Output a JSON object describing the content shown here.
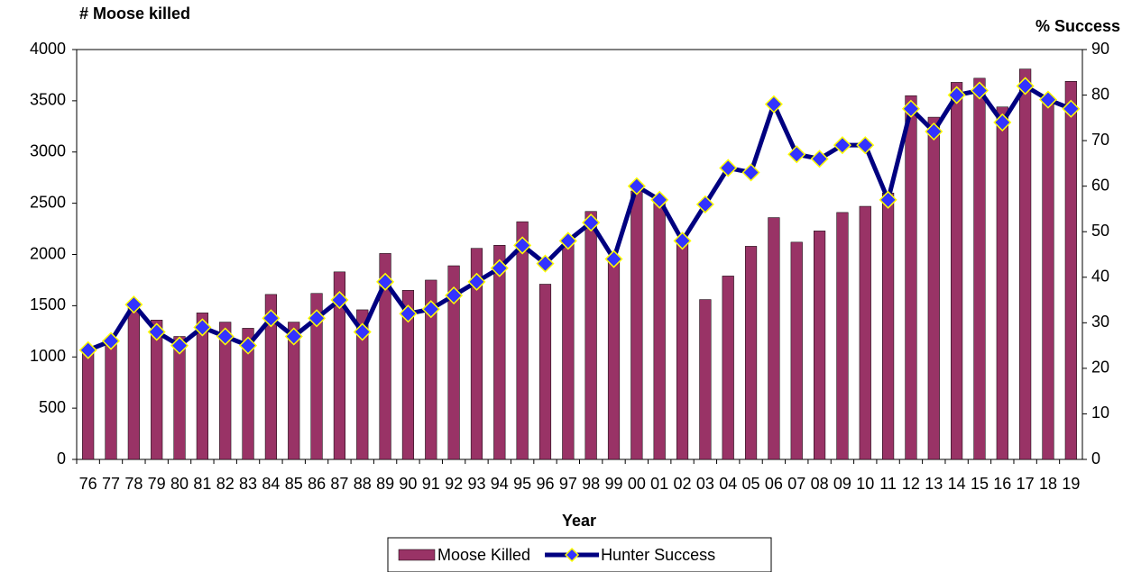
{
  "chart_data": {
    "type": "bar",
    "y_label": "# Moose killed",
    "y2_label": "%  Success",
    "x_label": "Year",
    "categories": [
      "76",
      "77",
      "78",
      "79",
      "80",
      "81",
      "82",
      "83",
      "84",
      "85",
      "86",
      "87",
      "88",
      "89",
      "90",
      "91",
      "92",
      "93",
      "94",
      "95",
      "96",
      "97",
      "98",
      "99",
      "00",
      "01",
      "02",
      "03",
      "04",
      "05",
      "06",
      "07",
      "08",
      "09",
      "10",
      "11",
      "12",
      "13",
      "14",
      "15",
      "16",
      "17",
      "18",
      "19"
    ],
    "series": [
      {
        "name": "Moose Killed",
        "type": "bar",
        "color": "#993366",
        "values": [
          1050,
          1150,
          1500,
          1360,
          1200,
          1430,
          1340,
          1280,
          1610,
          1340,
          1620,
          1830,
          1460,
          2010,
          1650,
          1750,
          1890,
          2060,
          2090,
          2320,
          1710,
          2150,
          2420,
          1950,
          2620,
          2520,
          2150,
          1560,
          1790,
          2080,
          2360,
          2120,
          2230,
          2410,
          2470,
          2600,
          3550,
          3340,
          3680,
          3720,
          3440,
          3810,
          3540,
          3690
        ]
      },
      {
        "name": "Hunter Success",
        "type": "line",
        "axis": "y2",
        "color": "#000080",
        "marker_color": "#3333ff",
        "values": [
          24,
          26,
          34,
          28,
          25,
          29,
          27,
          25,
          31,
          27,
          31,
          35,
          28,
          39,
          32,
          33,
          36,
          39,
          42,
          47,
          43,
          48,
          52,
          44,
          60,
          57,
          48,
          56,
          64,
          63,
          78,
          67,
          66,
          69,
          69,
          57,
          77,
          72,
          80,
          81,
          74,
          82,
          79,
          77
        ]
      }
    ],
    "ylim": [
      0,
      4000
    ],
    "yticks": [
      0,
      500,
      1000,
      1500,
      2000,
      2500,
      3000,
      3500,
      4000
    ],
    "y2lim": [
      0,
      90
    ],
    "y2ticks": [
      0,
      10,
      20,
      30,
      40,
      50,
      60,
      70,
      80,
      90
    ],
    "grid": false,
    "legend": "bottom"
  }
}
